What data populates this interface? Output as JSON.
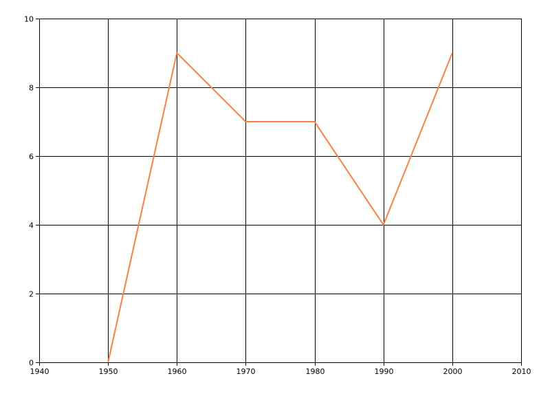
{
  "chart_data": {
    "type": "line",
    "title": "",
    "xlabel": "",
    "ylabel": "",
    "xlim": [
      1940,
      2010
    ],
    "ylim": [
      0,
      10
    ],
    "x_ticks": [
      "1940",
      "1950",
      "1960",
      "1970",
      "1980",
      "1990",
      "2000",
      "2010"
    ],
    "y_ticks": [
      "0",
      "2",
      "4",
      "6",
      "8",
      "10"
    ],
    "grid": true,
    "legend": "none",
    "series": [
      {
        "color": "#ff7f3f",
        "x": [
          1950,
          1960,
          1970,
          1980,
          1990,
          2000
        ],
        "y": [
          0,
          9,
          7,
          7,
          4,
          9
        ]
      }
    ]
  }
}
